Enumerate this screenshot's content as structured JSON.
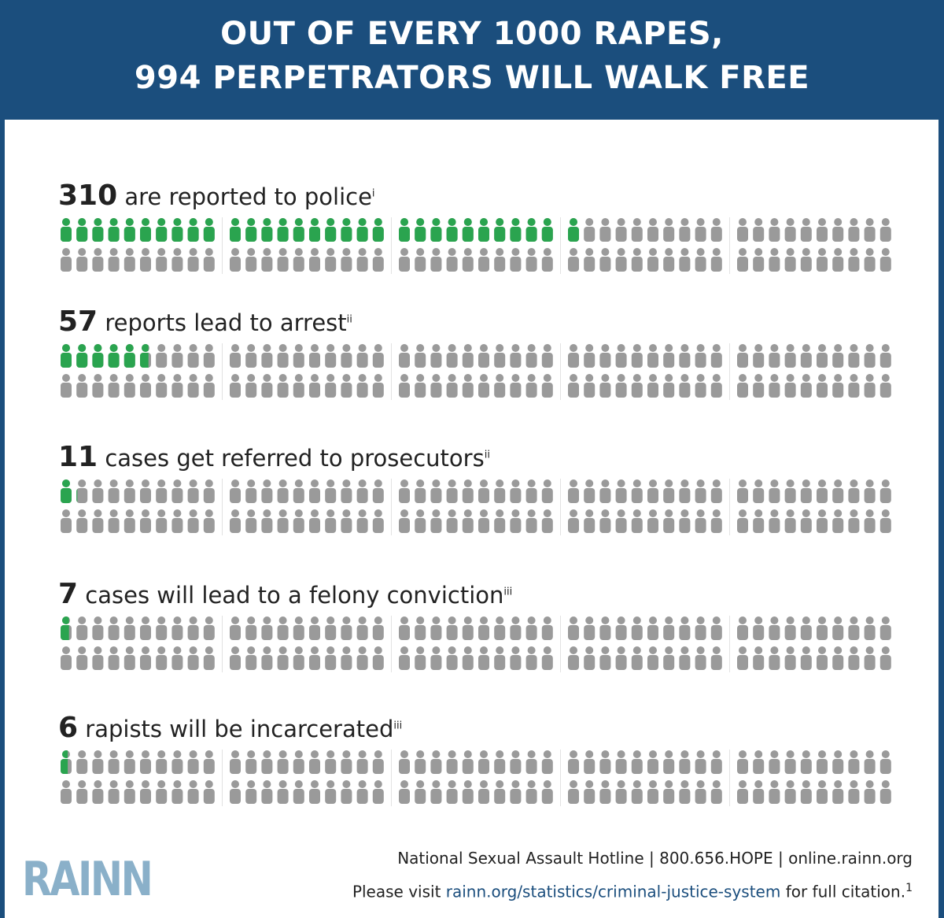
{
  "header": {
    "line1": "OUT OF EVERY 1000 RAPES,",
    "line2": "994 PERPETRATORS WILL WALK FREE"
  },
  "colors": {
    "highlight": "#2aa44f",
    "neutral": "#9a9a9a",
    "header_bg": "#1b4e7d"
  },
  "chart_data": {
    "type": "pictograph",
    "total_per_row": 100,
    "unit": "1 figure = 10 rapes",
    "rows": [
      {
        "value": 310,
        "text": "are reported to police",
        "note": "i",
        "highlighted_figures": 31
      },
      {
        "value": 57,
        "text": "reports lead to arrest",
        "note": "ii",
        "highlighted_figures": 5.7
      },
      {
        "value": 11,
        "text": "cases get referred to prosecutors",
        "note": "ii",
        "highlighted_figures": 1.1
      },
      {
        "value": 7,
        "text": "cases will lead to a felony conviction",
        "note": "iii",
        "highlighted_figures": 0.7
      },
      {
        "value": 6,
        "text": "rapists will be incarcerated",
        "note": "iii",
        "highlighted_figures": 0.6
      }
    ]
  },
  "footer": {
    "logo": "RAINN",
    "hotline": "National Sexual Assault Hotline | 800.656.HOPE | online.rainn.org",
    "citation_prefix": "Please visit ",
    "citation_link": "rainn.org/statistics/criminal-justice-system",
    "citation_suffix": " for full citation.",
    "footnote": "1"
  }
}
